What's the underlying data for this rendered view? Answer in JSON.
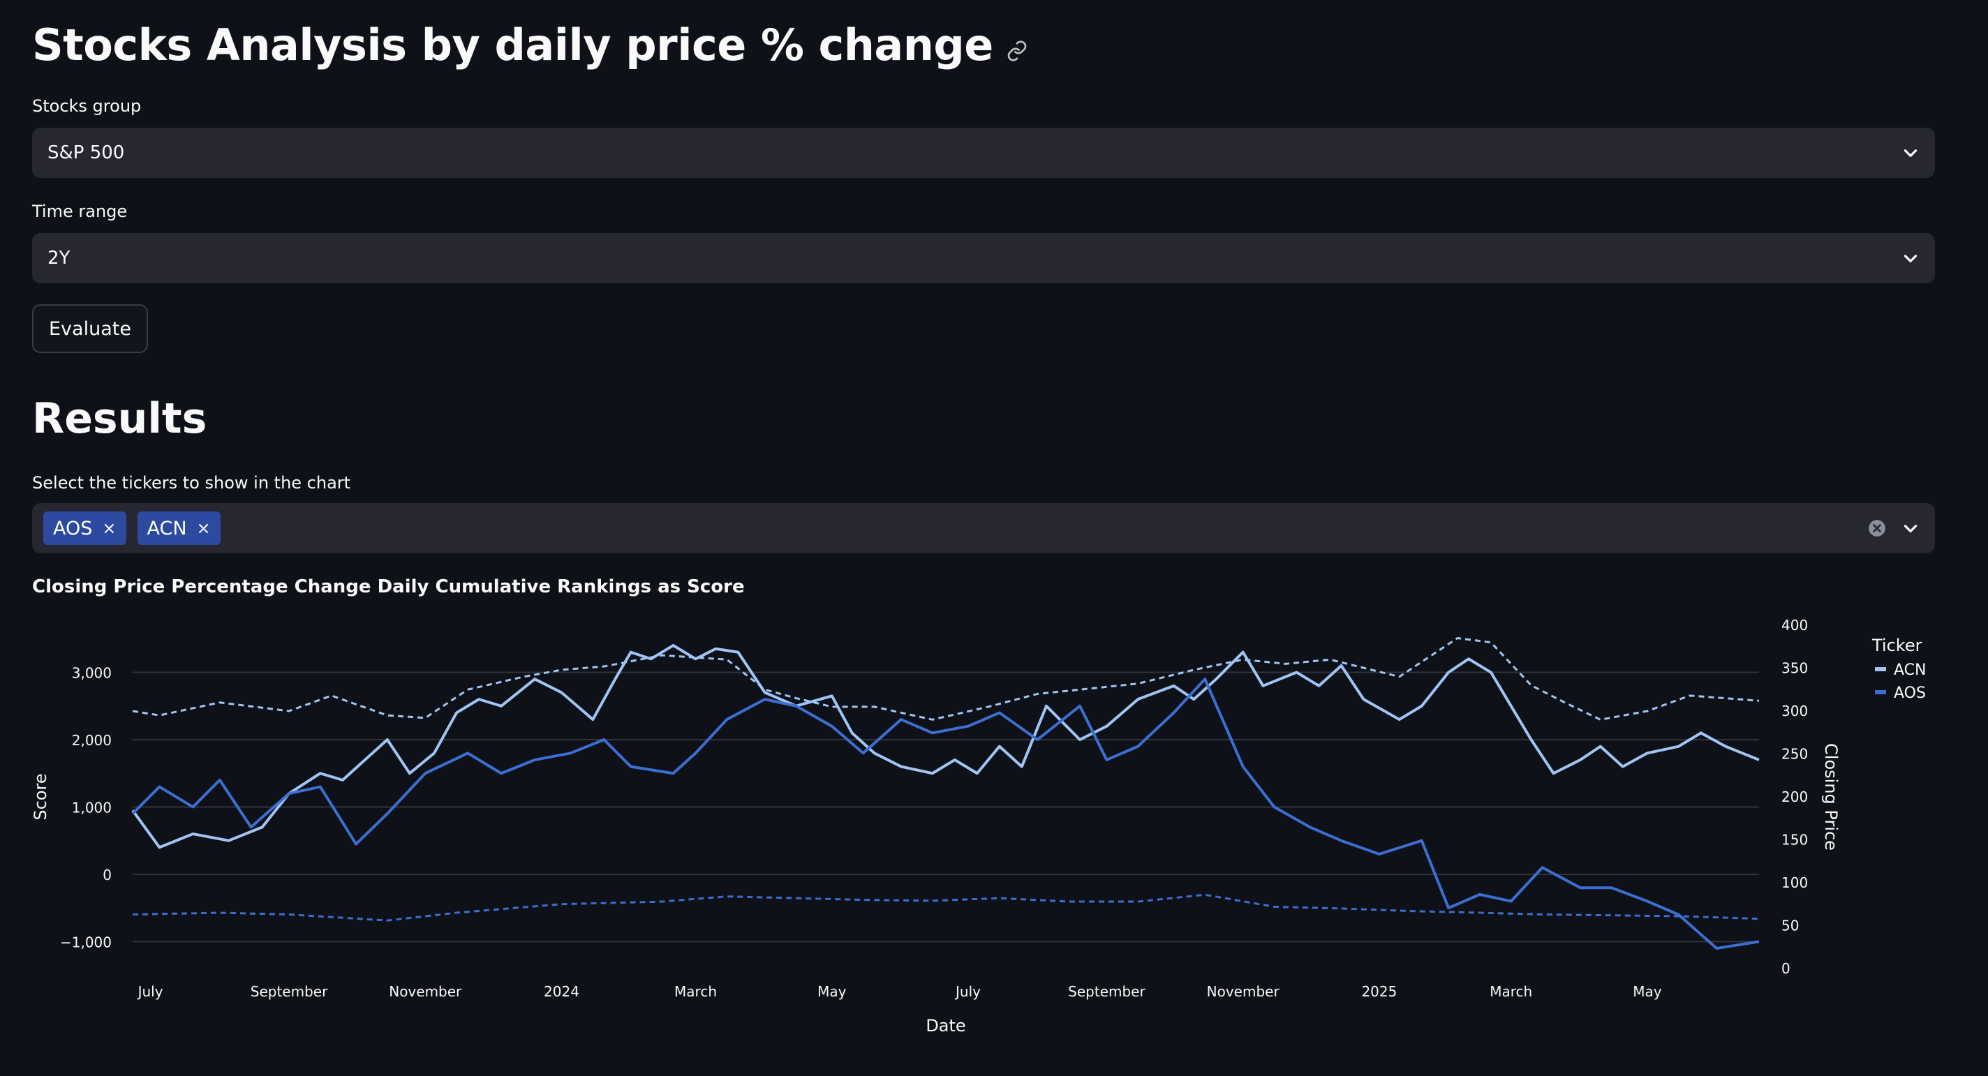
{
  "page": {
    "title": "Stocks Analysis by daily price % change"
  },
  "icons": {
    "title_link": "link-icon",
    "select_chevron": "chevron-down-icon",
    "clear": "clear-circle-icon",
    "tag_remove": "close-icon"
  },
  "colors": {
    "background": "#0e1117",
    "widget": "#262730",
    "tag": "#2c4aa0",
    "acn": "#9fc5f4",
    "aos": "#3b6fd1"
  },
  "stocks_group": {
    "label": "Stocks group",
    "value": "S&P 500"
  },
  "time_range": {
    "label": "Time range",
    "value": "2Y"
  },
  "evaluate": {
    "label": "Evaluate"
  },
  "results": {
    "title": "Results"
  },
  "tickers": {
    "label": "Select the tickers to show in the chart",
    "selected": [
      {
        "label": "AOS",
        "remove": "×"
      },
      {
        "label": "ACN",
        "remove": "×"
      }
    ]
  },
  "chart_data": {
    "type": "line",
    "title": "Closing Price Percentage Change Daily Cumulative Rankings as Score",
    "xlabel": "Date",
    "ylabel": "Score",
    "y2label": "Closing Price",
    "x_range": [
      "2023-06-23",
      "2025-06-20"
    ],
    "x_ticks": [
      {
        "date": "2023-07-01",
        "label": "July"
      },
      {
        "date": "2023-09-01",
        "label": "September"
      },
      {
        "date": "2023-11-01",
        "label": "November"
      },
      {
        "date": "2024-01-01",
        "label": "2024"
      },
      {
        "date": "2024-03-01",
        "label": "March"
      },
      {
        "date": "2024-05-01",
        "label": "May"
      },
      {
        "date": "2024-07-01",
        "label": "July"
      },
      {
        "date": "2024-09-01",
        "label": "September"
      },
      {
        "date": "2024-11-01",
        "label": "November"
      },
      {
        "date": "2025-01-01",
        "label": "2025"
      },
      {
        "date": "2025-03-01",
        "label": "March"
      },
      {
        "date": "2025-05-01",
        "label": "May"
      }
    ],
    "ylim": [
      -1400,
      3700
    ],
    "y_ticks": [
      {
        "value": 3000,
        "label": "3,000"
      },
      {
        "value": 2000,
        "label": "2,000"
      },
      {
        "value": 1000,
        "label": "1,000"
      },
      {
        "value": 0,
        "label": "0"
      },
      {
        "value": -1000,
        "label": "−1,000"
      }
    ],
    "y2lim": [
      0,
      400
    ],
    "y2_ticks": [
      0,
      50,
      100,
      150,
      200,
      250,
      300,
      350,
      400
    ],
    "grid": true,
    "legend": {
      "title": "Ticker",
      "position": "right",
      "entries": [
        "ACN",
        "AOS"
      ]
    },
    "series": [
      {
        "name": "ACN",
        "color": "#9fc5f4",
        "score": [
          [
            "2023-06-23",
            950
          ],
          [
            "2023-07-05",
            400
          ],
          [
            "2023-07-20",
            600
          ],
          [
            "2023-08-05",
            500
          ],
          [
            "2023-08-20",
            700
          ],
          [
            "2023-09-01",
            1200
          ],
          [
            "2023-09-15",
            1500
          ],
          [
            "2023-09-25",
            1400
          ],
          [
            "2023-10-05",
            1700
          ],
          [
            "2023-10-15",
            2000
          ],
          [
            "2023-10-25",
            1500
          ],
          [
            "2023-11-05",
            1800
          ],
          [
            "2023-11-15",
            2400
          ],
          [
            "2023-11-25",
            2600
          ],
          [
            "2023-12-05",
            2500
          ],
          [
            "2023-12-20",
            2900
          ],
          [
            "2024-01-01",
            2700
          ],
          [
            "2024-01-15",
            2300
          ],
          [
            "2024-01-25",
            2900
          ],
          [
            "2024-02-01",
            3300
          ],
          [
            "2024-02-10",
            3200
          ],
          [
            "2024-02-20",
            3400
          ],
          [
            "2024-03-01",
            3200
          ],
          [
            "2024-03-10",
            3350
          ],
          [
            "2024-03-20",
            3300
          ],
          [
            "2024-04-01",
            2700
          ],
          [
            "2024-04-15",
            2500
          ],
          [
            "2024-05-01",
            2650
          ],
          [
            "2024-05-10",
            2100
          ],
          [
            "2024-05-20",
            1800
          ],
          [
            "2024-06-01",
            1600
          ],
          [
            "2024-06-15",
            1500
          ],
          [
            "2024-06-25",
            1700
          ],
          [
            "2024-07-05",
            1500
          ],
          [
            "2024-07-15",
            1900
          ],
          [
            "2024-07-25",
            1600
          ],
          [
            "2024-08-05",
            2500
          ],
          [
            "2024-08-20",
            2000
          ],
          [
            "2024-09-01",
            2200
          ],
          [
            "2024-09-15",
            2600
          ],
          [
            "2024-10-01",
            2800
          ],
          [
            "2024-10-10",
            2600
          ],
          [
            "2024-10-20",
            2900
          ],
          [
            "2024-11-01",
            3300
          ],
          [
            "2024-11-10",
            2800
          ],
          [
            "2024-11-25",
            3000
          ],
          [
            "2024-12-05",
            2800
          ],
          [
            "2024-12-15",
            3100
          ],
          [
            "2024-12-25",
            2600
          ],
          [
            "2025-01-10",
            2300
          ],
          [
            "2025-01-20",
            2500
          ],
          [
            "2025-02-01",
            3000
          ],
          [
            "2025-02-10",
            3200
          ],
          [
            "2025-02-20",
            3000
          ],
          [
            "2025-03-01",
            2500
          ],
          [
            "2025-03-10",
            2000
          ],
          [
            "2025-03-20",
            1500
          ],
          [
            "2025-04-01",
            1700
          ],
          [
            "2025-04-10",
            1900
          ],
          [
            "2025-04-20",
            1600
          ],
          [
            "2025-05-01",
            1800
          ],
          [
            "2025-05-15",
            1900
          ],
          [
            "2025-05-25",
            2100
          ],
          [
            "2025-06-05",
            1900
          ],
          [
            "2025-06-20",
            1700
          ]
        ],
        "closing_price": [
          [
            "2023-06-23",
            300
          ],
          [
            "2023-07-05",
            295
          ],
          [
            "2023-08-01",
            310
          ],
          [
            "2023-09-01",
            300
          ],
          [
            "2023-09-20",
            318
          ],
          [
            "2023-10-15",
            295
          ],
          [
            "2023-11-01",
            292
          ],
          [
            "2023-11-20",
            325
          ],
          [
            "2023-12-15",
            340
          ],
          [
            "2024-01-01",
            348
          ],
          [
            "2024-01-20",
            352
          ],
          [
            "2024-02-15",
            365
          ],
          [
            "2024-03-15",
            360
          ],
          [
            "2024-04-01",
            325
          ],
          [
            "2024-04-15",
            315
          ],
          [
            "2024-05-01",
            305
          ],
          [
            "2024-05-20",
            305
          ],
          [
            "2024-06-15",
            290
          ],
          [
            "2024-07-10",
            305
          ],
          [
            "2024-08-01",
            320
          ],
          [
            "2024-08-20",
            325
          ],
          [
            "2024-09-15",
            332
          ],
          [
            "2024-10-10",
            348
          ],
          [
            "2024-11-01",
            360
          ],
          [
            "2024-11-20",
            355
          ],
          [
            "2024-12-10",
            360
          ],
          [
            "2025-01-10",
            340
          ],
          [
            "2025-02-05",
            385
          ],
          [
            "2025-02-20",
            380
          ],
          [
            "2025-03-10",
            330
          ],
          [
            "2025-03-25",
            310
          ],
          [
            "2025-04-10",
            290
          ],
          [
            "2025-05-01",
            300
          ],
          [
            "2025-05-20",
            318
          ],
          [
            "2025-06-20",
            312
          ]
        ]
      },
      {
        "name": "AOS",
        "color": "#3b6fd1",
        "score": [
          [
            "2023-06-23",
            900
          ],
          [
            "2023-07-05",
            1300
          ],
          [
            "2023-07-20",
            1000
          ],
          [
            "2023-08-01",
            1400
          ],
          [
            "2023-08-15",
            700
          ],
          [
            "2023-09-01",
            1200
          ],
          [
            "2023-09-15",
            1300
          ],
          [
            "2023-10-01",
            450
          ],
          [
            "2023-10-15",
            900
          ],
          [
            "2023-11-01",
            1500
          ],
          [
            "2023-11-20",
            1800
          ],
          [
            "2023-12-05",
            1500
          ],
          [
            "2023-12-20",
            1700
          ],
          [
            "2024-01-05",
            1800
          ],
          [
            "2024-01-20",
            2000
          ],
          [
            "2024-02-01",
            1600
          ],
          [
            "2024-02-20",
            1500
          ],
          [
            "2024-03-01",
            1800
          ],
          [
            "2024-03-15",
            2300
          ],
          [
            "2024-04-01",
            2600
          ],
          [
            "2024-04-15",
            2500
          ],
          [
            "2024-05-01",
            2200
          ],
          [
            "2024-05-15",
            1800
          ],
          [
            "2024-06-01",
            2300
          ],
          [
            "2024-06-15",
            2100
          ],
          [
            "2024-07-01",
            2200
          ],
          [
            "2024-07-15",
            2400
          ],
          [
            "2024-08-01",
            2000
          ],
          [
            "2024-08-20",
            2500
          ],
          [
            "2024-09-01",
            1700
          ],
          [
            "2024-09-15",
            1900
          ],
          [
            "2024-10-01",
            2400
          ],
          [
            "2024-10-15",
            2900
          ],
          [
            "2024-11-01",
            1600
          ],
          [
            "2024-11-15",
            1000
          ],
          [
            "2024-12-01",
            700
          ],
          [
            "2024-12-15",
            500
          ],
          [
            "2025-01-01",
            300
          ],
          [
            "2025-01-20",
            500
          ],
          [
            "2025-02-01",
            -500
          ],
          [
            "2025-02-15",
            -300
          ],
          [
            "2025-03-01",
            -400
          ],
          [
            "2025-03-15",
            100
          ],
          [
            "2025-04-01",
            -200
          ],
          [
            "2025-04-15",
            -200
          ],
          [
            "2025-05-01",
            -400
          ],
          [
            "2025-05-15",
            -600
          ],
          [
            "2025-06-01",
            -1100
          ],
          [
            "2025-06-20",
            -1000
          ]
        ],
        "closing_price": [
          [
            "2023-06-23",
            63
          ],
          [
            "2023-08-01",
            65
          ],
          [
            "2023-09-01",
            63
          ],
          [
            "2023-10-15",
            56
          ],
          [
            "2023-11-15",
            65
          ],
          [
            "2024-01-01",
            75
          ],
          [
            "2024-02-15",
            78
          ],
          [
            "2024-03-15",
            84
          ],
          [
            "2024-04-15",
            82
          ],
          [
            "2024-05-15",
            80
          ],
          [
            "2024-06-15",
            79
          ],
          [
            "2024-07-15",
            82
          ],
          [
            "2024-08-15",
            78
          ],
          [
            "2024-09-15",
            78
          ],
          [
            "2024-10-15",
            86
          ],
          [
            "2024-11-15",
            72
          ],
          [
            "2024-12-15",
            70
          ],
          [
            "2025-01-15",
            67
          ],
          [
            "2025-02-15",
            65
          ],
          [
            "2025-03-15",
            63
          ],
          [
            "2025-04-15",
            62
          ],
          [
            "2025-05-15",
            61
          ],
          [
            "2025-06-20",
            58
          ]
        ]
      }
    ]
  }
}
